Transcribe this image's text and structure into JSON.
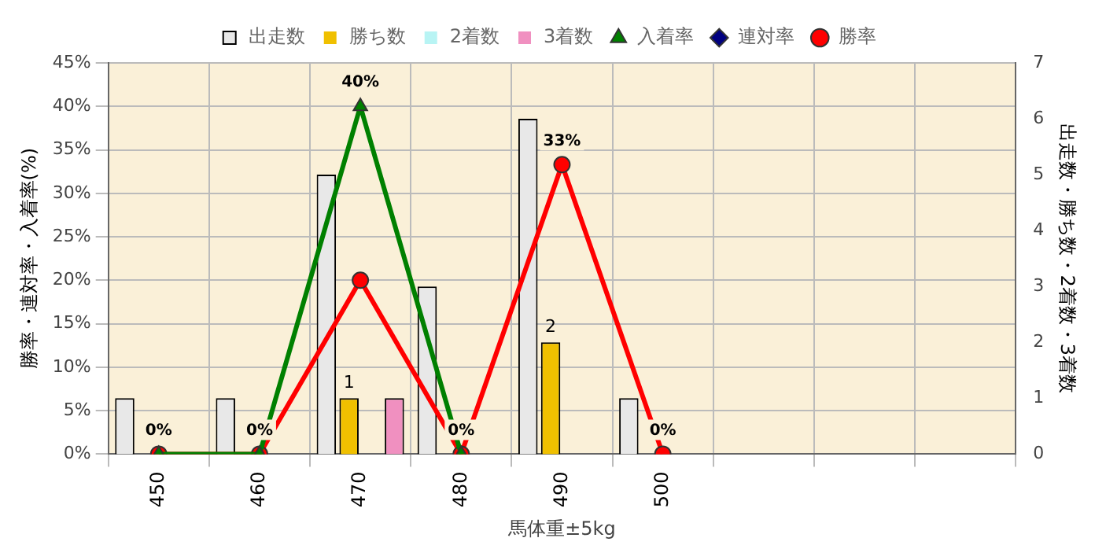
{
  "chart_data": {
    "type": "bar",
    "xlabel": "馬体重±5kg",
    "ylabel": "勝率・連対率・入着率(%)",
    "y2label": "出走数・勝ち数・2着数・3着数",
    "categories": [
      "450",
      "460",
      "470",
      "480",
      "490",
      "500",
      null,
      null,
      null
    ],
    "series": [
      {
        "name": "出走数",
        "axis": "y2",
        "color": "#e8e8e8",
        "values": [
          1,
          1,
          5,
          3,
          6,
          1,
          null,
          null,
          null
        ]
      },
      {
        "name": "勝ち数",
        "axis": "y2",
        "color": "#f0c000",
        "values": [
          0,
          0,
          1,
          0,
          2,
          0,
          null,
          null,
          null
        ],
        "value_labels": [
          null,
          null,
          "1",
          null,
          "2",
          null,
          null,
          null,
          null
        ]
      },
      {
        "name": "2着数",
        "axis": "y2",
        "color": "#b8f4f4",
        "values": [
          0,
          0,
          0,
          0,
          0,
          0,
          null,
          null,
          null
        ]
      },
      {
        "name": "3着数",
        "axis": "y2",
        "color": "#f090c0",
        "values": [
          0,
          0,
          1,
          0,
          0,
          0,
          null,
          null,
          null
        ]
      },
      {
        "name": "入着率",
        "type": "line",
        "marker": "triangle",
        "color": "#008000",
        "values": [
          0,
          0,
          40,
          0,
          null,
          null,
          null,
          null,
          null
        ],
        "value_labels": [
          null,
          null,
          "40%",
          null,
          null,
          null,
          null,
          null,
          null
        ]
      },
      {
        "name": "連対率",
        "type": "line",
        "marker": "diamond",
        "color": "#000080",
        "values": [
          null,
          null,
          null,
          null,
          null,
          null,
          null,
          null,
          null
        ]
      },
      {
        "name": "勝率",
        "type": "line",
        "marker": "circle",
        "color": "#ff0000",
        "values": [
          0,
          0,
          20,
          0,
          33.3,
          0,
          null,
          null,
          null
        ],
        "value_labels": [
          "0%",
          "0%",
          null,
          "0%",
          "33%",
          "0%",
          null,
          null,
          null
        ]
      }
    ],
    "ylim": [
      0,
      45
    ],
    "yticks": [
      {
        "value": 0,
        "label": "0%"
      },
      {
        "value": 5,
        "label": "5%"
      },
      {
        "value": 10,
        "label": "10%"
      },
      {
        "value": 15,
        "label": "15%"
      },
      {
        "value": 20,
        "label": "20%"
      },
      {
        "value": 25,
        "label": "25%"
      },
      {
        "value": 30,
        "label": "30%"
      },
      {
        "value": 35,
        "label": "35%"
      },
      {
        "value": 40,
        "label": "40%"
      },
      {
        "value": 45,
        "label": "45%"
      }
    ],
    "y2lim": [
      0,
      7
    ],
    "y2ticks": [
      0,
      1,
      2,
      3,
      4,
      5,
      6,
      7
    ],
    "grid": true,
    "legend": "top"
  }
}
